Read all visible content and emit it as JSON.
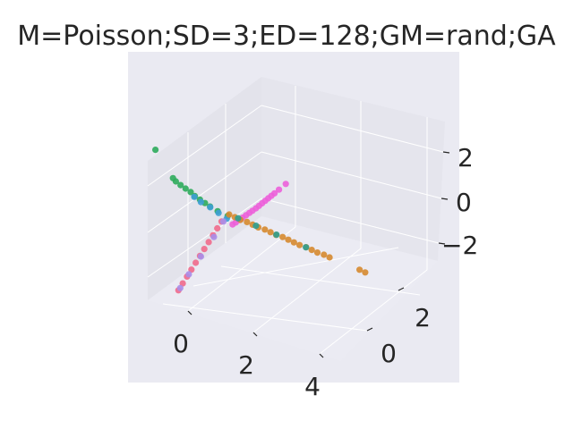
{
  "chart_data": {
    "type": "scatter",
    "projection": "3d",
    "title": "M=Poisson;SD=3;ED=128;GM=rand;GA",
    "x_ticks": [
      "0",
      "2",
      "4"
    ],
    "y_ticks": [
      "0",
      "2"
    ],
    "z_ticks": [
      "2",
      "0",
      "−2"
    ],
    "grid": true,
    "legend": "none",
    "colors": {
      "pane": "#eaeaf2",
      "axes_background": "#e8e8f0",
      "grid": "#ffffff",
      "text": "#262626"
    },
    "series": [
      {
        "color": "#ec5fd9",
        "points": [
          [
            0.05,
            0.1,
            -0.45
          ],
          [
            0.1,
            0.18,
            -0.38
          ],
          [
            0.15,
            0.28,
            -0.3
          ],
          [
            0.2,
            0.38,
            -0.22
          ],
          [
            0.25,
            0.48,
            -0.14
          ],
          [
            0.3,
            0.58,
            -0.06
          ],
          [
            0.35,
            0.66,
            0.02
          ],
          [
            0.4,
            0.76,
            0.1
          ],
          [
            0.44,
            0.86,
            0.18
          ],
          [
            0.48,
            0.96,
            0.26
          ],
          [
            0.52,
            1.06,
            0.34
          ],
          [
            0.56,
            1.16,
            0.42
          ],
          [
            0.6,
            1.26,
            0.5
          ],
          [
            0.64,
            1.36,
            0.58
          ],
          [
            0.7,
            1.5,
            0.7
          ],
          [
            0.8,
            1.7,
            0.9
          ]
        ]
      },
      {
        "color": "#2eab5c",
        "points": [
          [
            -0.1,
            0.1,
            -0.15
          ],
          [
            -0.3,
            -0.1,
            0.05
          ],
          [
            -0.45,
            -0.25,
            0.25
          ],
          [
            -0.55,
            -0.35,
            0.4
          ],
          [
            -0.65,
            -0.45,
            0.55
          ],
          [
            -0.75,
            -0.55,
            0.7
          ],
          [
            -0.85,
            -0.6,
            0.85
          ],
          [
            -0.95,
            -0.7,
            1.0
          ],
          [
            -1.05,
            -0.8,
            1.15
          ],
          [
            -1.15,
            -0.88,
            1.3
          ],
          [
            -1.2,
            -0.95,
            1.45
          ],
          [
            -1.6,
            -1.2,
            2.6
          ]
        ]
      },
      {
        "color": "#3d9ed4",
        "points": [
          [
            -0.1,
            0.05,
            -0.25
          ],
          [
            -0.3,
            -0.05,
            -0.05
          ],
          [
            -0.5,
            -0.15,
            0.15
          ],
          [
            -0.7,
            -0.3,
            0.35
          ],
          [
            -0.85,
            -0.4,
            0.55
          ]
        ]
      },
      {
        "color": "#f06a8c",
        "points": [
          [
            -0.15,
            -0.15,
            -0.3
          ],
          [
            -0.2,
            -0.3,
            -0.55
          ],
          [
            -0.25,
            -0.45,
            -0.8
          ],
          [
            -0.3,
            -0.6,
            -1.05
          ],
          [
            -0.35,
            -0.75,
            -1.3
          ],
          [
            -0.4,
            -0.9,
            -1.55
          ],
          [
            -0.45,
            -1.05,
            -1.8
          ],
          [
            -0.5,
            -1.2,
            -2.05
          ],
          [
            -0.55,
            -1.35,
            -2.3
          ],
          [
            -0.6,
            -1.5,
            -2.55
          ],
          [
            -0.65,
            -1.65,
            -2.8
          ]
        ]
      },
      {
        "color": "#a98de8",
        "points": [
          [
            -0.15,
            -0.05,
            -0.35
          ],
          [
            -0.25,
            -0.4,
            -0.9
          ],
          [
            -0.4,
            -0.85,
            -1.6
          ],
          [
            -0.55,
            -1.25,
            -2.25
          ],
          [
            -0.65,
            -1.55,
            -2.75
          ]
        ]
      },
      {
        "color": "#d6892f",
        "points": [
          [
            0.0,
            0.0,
            0.0
          ],
          [
            0.2,
            -0.05,
            0.0
          ],
          [
            0.4,
            -0.1,
            0.0
          ],
          [
            0.6,
            -0.1,
            0.0
          ],
          [
            0.8,
            -0.15,
            0.0
          ],
          [
            1.0,
            -0.2,
            0.0
          ],
          [
            1.2,
            -0.2,
            0.0
          ],
          [
            1.4,
            -0.25,
            0.0
          ],
          [
            1.6,
            -0.3,
            0.0
          ],
          [
            1.8,
            -0.3,
            0.0
          ],
          [
            2.0,
            -0.35,
            0.0
          ],
          [
            2.2,
            -0.4,
            0.0
          ],
          [
            2.4,
            -0.45,
            0.0
          ],
          [
            2.6,
            -0.45,
            0.0
          ],
          [
            2.8,
            -0.5,
            0.0
          ],
          [
            3.0,
            -0.55,
            0.0
          ],
          [
            3.2,
            -0.55,
            0.0
          ],
          [
            3.4,
            -0.6,
            0.0
          ],
          [
            4.4,
            -0.75,
            0.0
          ],
          [
            4.6,
            -0.8,
            0.0
          ]
        ]
      },
      {
        "color": "#2f9f8f",
        "points": [
          [
            0.3,
            -0.05,
            0.0
          ],
          [
            0.9,
            -0.15,
            0.0
          ],
          [
            1.6,
            -0.28,
            0.0
          ],
          [
            2.6,
            -0.46,
            0.0
          ]
        ]
      }
    ]
  }
}
